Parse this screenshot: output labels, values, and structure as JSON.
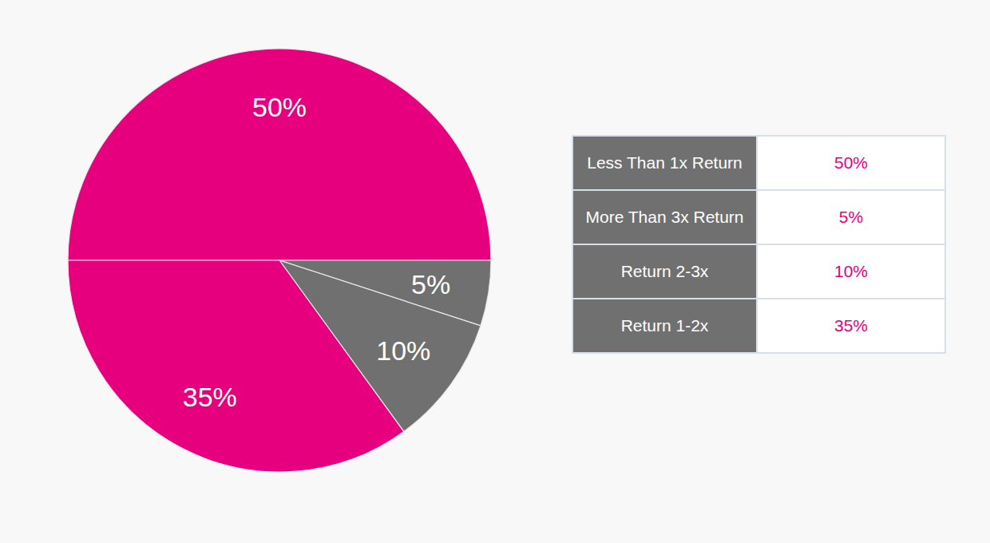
{
  "chart_data": {
    "type": "pie",
    "categories": [
      "Less Than 1x Return",
      "More Than 3x Return",
      "Return 2-3x",
      "Return 1-2x"
    ],
    "values": [
      50,
      5,
      10,
      35
    ],
    "value_labels": [
      "50%",
      "5%",
      "10%",
      "35%"
    ],
    "colors": [
      "#e6007e",
      "#707070",
      "#707070",
      "#e6007e"
    ],
    "data_labels": true
  }
}
